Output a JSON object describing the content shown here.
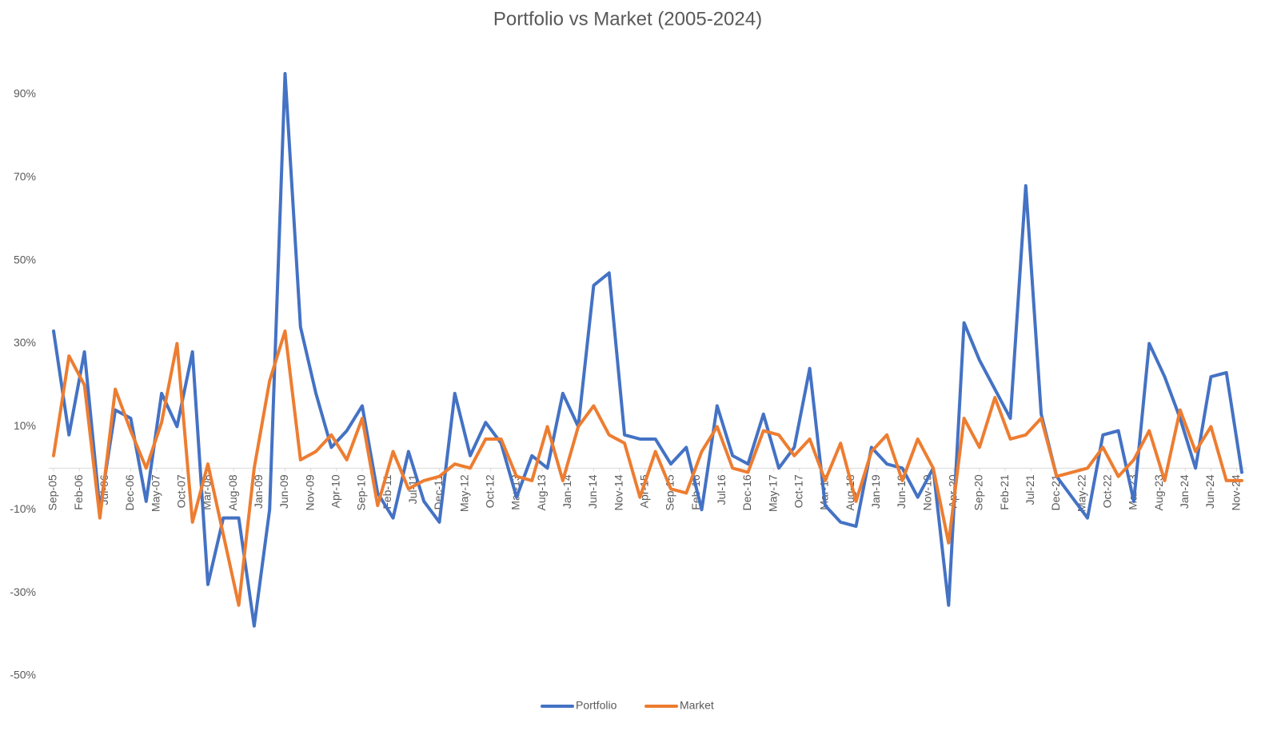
{
  "chart_data": {
    "type": "line",
    "title": "Portfolio vs Market (2005-2024)",
    "x": [
      0,
      3,
      6,
      9,
      12,
      15,
      18,
      21,
      24,
      27,
      30,
      33,
      36,
      39,
      42,
      45,
      48,
      51,
      54,
      57,
      60,
      63,
      66,
      69,
      72,
      75,
      78,
      81,
      84,
      87,
      90,
      93,
      96,
      99,
      102,
      105,
      108,
      111,
      114,
      117,
      120,
      123,
      126,
      129,
      132,
      135,
      138,
      141,
      144,
      147,
      150,
      153,
      156,
      159,
      162,
      165,
      168,
      171,
      174,
      177,
      180,
      183,
      186,
      189,
      192,
      195,
      198,
      201,
      204,
      207,
      210,
      213,
      216,
      219,
      222,
      225,
      228,
      231
    ],
    "xlim": [
      0,
      231
    ],
    "xticks": [
      {
        "value": 0,
        "label": "Sep-05"
      },
      {
        "value": 5,
        "label": "Feb-06"
      },
      {
        "value": 10,
        "label": "Jul-06"
      },
      {
        "value": 15,
        "label": "Dec-06"
      },
      {
        "value": 20,
        "label": "May-07"
      },
      {
        "value": 25,
        "label": "Oct-07"
      },
      {
        "value": 30,
        "label": "Mar-08"
      },
      {
        "value": 35,
        "label": "Aug-08"
      },
      {
        "value": 40,
        "label": "Jan-09"
      },
      {
        "value": 45,
        "label": "Jun-09"
      },
      {
        "value": 50,
        "label": "Nov-09"
      },
      {
        "value": 55,
        "label": "Apr-10"
      },
      {
        "value": 60,
        "label": "Sep-10"
      },
      {
        "value": 65,
        "label": "Feb-11"
      },
      {
        "value": 70,
        "label": "Jul-11"
      },
      {
        "value": 75,
        "label": "Dec-11"
      },
      {
        "value": 80,
        "label": "May-12"
      },
      {
        "value": 85,
        "label": "Oct-12"
      },
      {
        "value": 90,
        "label": "Mar-13"
      },
      {
        "value": 95,
        "label": "Aug-13"
      },
      {
        "value": 100,
        "label": "Jan-14"
      },
      {
        "value": 105,
        "label": "Jun-14"
      },
      {
        "value": 110,
        "label": "Nov-14"
      },
      {
        "value": 115,
        "label": "Apr-15"
      },
      {
        "value": 120,
        "label": "Sep-15"
      },
      {
        "value": 125,
        "label": "Feb-16"
      },
      {
        "value": 130,
        "label": "Jul-16"
      },
      {
        "value": 135,
        "label": "Dec-16"
      },
      {
        "value": 140,
        "label": "May-17"
      },
      {
        "value": 145,
        "label": "Oct-17"
      },
      {
        "value": 150,
        "label": "Mar-18"
      },
      {
        "value": 155,
        "label": "Aug-18"
      },
      {
        "value": 160,
        "label": "Jan-19"
      },
      {
        "value": 165,
        "label": "Jun-19"
      },
      {
        "value": 170,
        "label": "Nov-19"
      },
      {
        "value": 175,
        "label": "Apr-20"
      },
      {
        "value": 180,
        "label": "Sep-20"
      },
      {
        "value": 185,
        "label": "Feb-21"
      },
      {
        "value": 190,
        "label": "Jul-21"
      },
      {
        "value": 195,
        "label": "Dec-21"
      },
      {
        "value": 200,
        "label": "May-22"
      },
      {
        "value": 205,
        "label": "Oct-22"
      },
      {
        "value": 210,
        "label": "Mar-23"
      },
      {
        "value": 215,
        "label": "Aug-23"
      },
      {
        "value": 220,
        "label": "Jan-24"
      },
      {
        "value": 225,
        "label": "Jun-24"
      },
      {
        "value": 230,
        "label": "Nov-24"
      }
    ],
    "ylim": [
      -50,
      100
    ],
    "yticks": [
      {
        "value": -50,
        "label": "-50%"
      },
      {
        "value": -30,
        "label": "-30%"
      },
      {
        "value": -10,
        "label": "-10%"
      },
      {
        "value": 10,
        "label": "10%"
      },
      {
        "value": 30,
        "label": "30%"
      },
      {
        "value": 50,
        "label": "50%"
      },
      {
        "value": 70,
        "label": "70%"
      },
      {
        "value": 90,
        "label": "90%"
      }
    ],
    "grid": false,
    "legend": "bottom",
    "series": [
      {
        "name": "Portfolio",
        "color": "#4472c4",
        "values": [
          33,
          8,
          28,
          -10,
          14,
          12,
          -8,
          18,
          10,
          28,
          -28,
          -12,
          -12,
          -38,
          -10,
          95,
          34,
          18,
          5,
          9,
          15,
          -6,
          -12,
          4,
          -8,
          -13,
          18,
          3,
          11,
          6,
          -7,
          3,
          0,
          18,
          10,
          44,
          47,
          8,
          7,
          7,
          1,
          5,
          -10,
          15,
          3,
          1,
          13,
          0,
          5,
          24,
          -9,
          -13,
          -14,
          5,
          1,
          0,
          -7,
          0,
          -33,
          35,
          26,
          19,
          12,
          68,
          13,
          -2,
          -7,
          -12,
          8,
          9,
          -8,
          30,
          22,
          12,
          0,
          22,
          23,
          -1
        ]
      },
      {
        "name": "Market",
        "color": "#ed7d31",
        "values": [
          3,
          27,
          20,
          -12,
          19,
          9,
          0,
          11,
          30,
          -13,
          1,
          -16,
          -33,
          0,
          21,
          33,
          2,
          4,
          8,
          2,
          12,
          -9,
          4,
          -5,
          -3,
          -2,
          1,
          0,
          7,
          7,
          -2,
          -3,
          10,
          -3,
          10,
          15,
          8,
          6,
          -7,
          4,
          -5,
          -6,
          4,
          10,
          0,
          -1,
          9,
          8,
          3,
          7,
          -3,
          6,
          -8,
          4,
          8,
          -3,
          7,
          0,
          -18,
          12,
          5,
          17,
          7,
          8,
          12,
          -2,
          -1,
          0,
          5,
          -2,
          2,
          9,
          -3,
          14,
          4,
          10,
          -3,
          -3
        ]
      }
    ]
  }
}
